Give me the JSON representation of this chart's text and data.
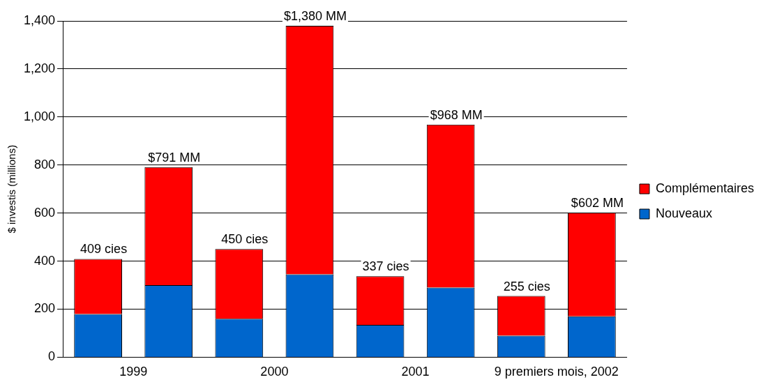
{
  "chart_data": {
    "type": "bar",
    "stacked": true,
    "ylabel": "$ investis (millions)",
    "categories": [
      "1999",
      null,
      "2000",
      null,
      "2001",
      null,
      "9 premiers mois, 2002",
      null
    ],
    "series": [
      {
        "name": "Nouveaux",
        "color": "#0066cc",
        "values": [
          180,
          300,
          160,
          345,
          135,
          290,
          90,
          170
        ]
      },
      {
        "name": "Complémentaires",
        "color": "#ff0000",
        "values": [
          229,
          491,
          290,
          1035,
          202,
          678,
          165,
          432
        ]
      }
    ],
    "totals": [
      "409 cies",
      "$791 MM",
      "450 cies",
      "$1,380 MM",
      "337 cies",
      "$968 MM",
      "255 cies",
      "$602 MM"
    ],
    "ylim": [
      0,
      1400
    ],
    "yticks": [
      0,
      {
        "value": 200,
        "label": "200"
      },
      {
        "value": 400,
        "label": "400"
      },
      {
        "value": 600,
        "label": "600"
      },
      {
        "value": 800,
        "label": "800"
      },
      {
        "value": 1000,
        "label": "1,000"
      },
      {
        "value": 1200,
        "label": "1,200"
      },
      {
        "value": 1400,
        "label": "1,400"
      }
    ],
    "grid": "y",
    "legend": "right"
  }
}
